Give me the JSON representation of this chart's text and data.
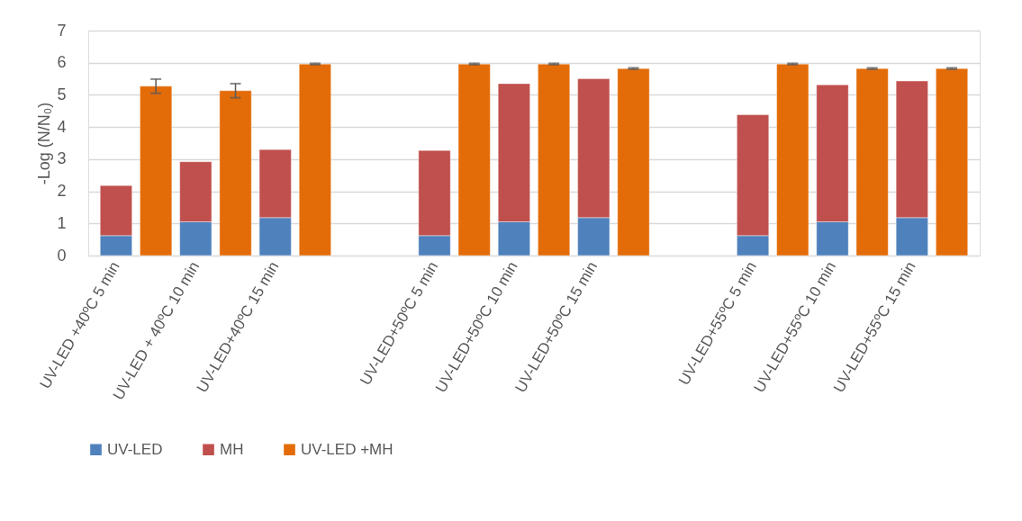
{
  "chart_data": {
    "type": "bar",
    "stacked": true,
    "ylabel": "-Log (N/N₀)",
    "categories": [
      "UV-LED +40ºC 5 min",
      null,
      "UV-LED + 40ºC  10 min",
      null,
      "UV-LED+40ºC 15 min",
      null,
      null,
      null,
      "UV-LED+50ºC 5 min",
      null,
      "UV-LED+50ºC 10 min",
      null,
      "UV-LED+50ºC 15 min",
      null,
      null,
      null,
      "UV-LED+55ºC 5 min",
      null,
      "UV-LED+55ºC 10 min",
      null,
      "UV-LED+55ºC 15 min",
      null
    ],
    "series": [
      {
        "name": "UV-LED",
        "color": "#4f81bd",
        "values": [
          0.62,
          null,
          1.05,
          null,
          1.18,
          null,
          null,
          null,
          0.62,
          null,
          1.05,
          null,
          1.18,
          null,
          null,
          null,
          0.62,
          null,
          1.05,
          null,
          1.18,
          null
        ]
      },
      {
        "name": "MH",
        "color": "#c0504d",
        "values": [
          1.56,
          null,
          1.87,
          null,
          2.12,
          null,
          null,
          null,
          2.65,
          null,
          4.3,
          null,
          4.32,
          null,
          null,
          null,
          3.76,
          null,
          4.26,
          null,
          4.25,
          null
        ]
      },
      {
        "name": "UV-LED +MH",
        "color": "#e36c09",
        "values": [
          null,
          5.27,
          null,
          5.13,
          null,
          5.96,
          null,
          null,
          null,
          5.96,
          null,
          5.96,
          null,
          5.82,
          null,
          null,
          null,
          5.96,
          null,
          5.82,
          null,
          5.82
        ],
        "errors": [
          null,
          0.22,
          null,
          0.22,
          null,
          0.02,
          null,
          null,
          null,
          0.02,
          null,
          0.02,
          null,
          0.02,
          null,
          null,
          null,
          0.02,
          null,
          0.02,
          null,
          0.02
        ]
      }
    ],
    "ylim": [
      0,
      7
    ],
    "yticks": [
      0,
      1,
      2,
      3,
      4,
      5,
      6,
      7
    ],
    "grid": "y",
    "legend": "bottom"
  }
}
